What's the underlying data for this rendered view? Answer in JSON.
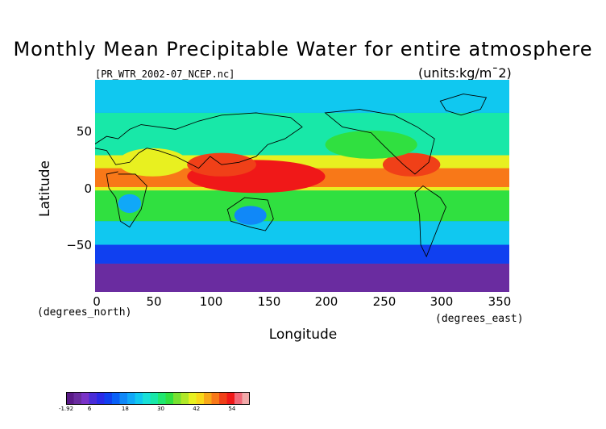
{
  "title": "Monthly Mean Precipitable Water for entire atmosphere",
  "file_label": "[PR_WTR_2002-07_NCEP.nc]",
  "units": "(units:kg/m¯2)",
  "axes": {
    "xlabel": "Longitude",
    "ylabel": "Latitude",
    "x_unit": "(degrees_east)",
    "y_unit": "(degrees_north)",
    "x_ticks": [
      "0",
      "50",
      "100",
      "150",
      "200",
      "250",
      "300",
      "350"
    ],
    "y_ticks": [
      "50",
      "0",
      "−50"
    ]
  },
  "map_data": {
    "variable": "precipitable water",
    "month": "2002-07",
    "lon_range": [
      0,
      360
    ],
    "lat_range": [
      -90,
      90
    ],
    "coastlines": true
  },
  "colorbar": {
    "min": -1.92,
    "max": 60,
    "tick_labels": [
      "-1.92",
      "6",
      "18",
      "30",
      "42",
      "54"
    ],
    "colors": [
      "#5a1a88",
      "#6a2ca0",
      "#7a32c8",
      "#4a2cd8",
      "#2a2ae8",
      "#1040f0",
      "#0860f8",
      "#1088f8",
      "#10a8f8",
      "#10c8f0",
      "#18e0d8",
      "#18e8a8",
      "#20e870",
      "#30e040",
      "#78e030",
      "#b0e828",
      "#e8f020",
      "#f8d818",
      "#f8a818",
      "#f87818",
      "#f04018",
      "#f01818",
      "#f06878",
      "#f0a8a8"
    ]
  }
}
